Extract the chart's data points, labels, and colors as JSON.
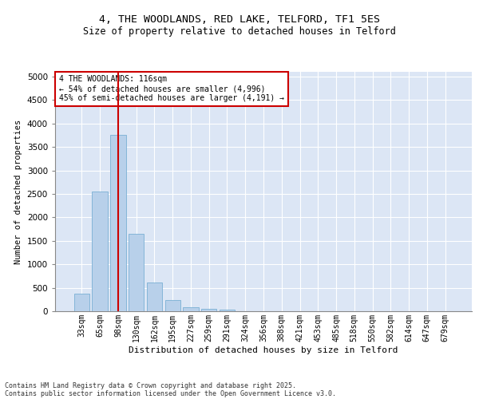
{
  "title_line1": "4, THE WOODLANDS, RED LAKE, TELFORD, TF1 5ES",
  "title_line2": "Size of property relative to detached houses in Telford",
  "xlabel": "Distribution of detached houses by size in Telford",
  "ylabel": "Number of detached properties",
  "categories": [
    "33sqm",
    "65sqm",
    "98sqm",
    "130sqm",
    "162sqm",
    "195sqm",
    "227sqm",
    "259sqm",
    "291sqm",
    "324sqm",
    "356sqm",
    "388sqm",
    "421sqm",
    "453sqm",
    "485sqm",
    "518sqm",
    "550sqm",
    "582sqm",
    "614sqm",
    "647sqm",
    "679sqm"
  ],
  "values": [
    380,
    2550,
    3750,
    1650,
    620,
    230,
    90,
    45,
    35,
    0,
    0,
    0,
    0,
    0,
    0,
    0,
    0,
    0,
    0,
    0,
    0
  ],
  "bar_color": "#b8d0ea",
  "bar_edge_color": "#7aafd4",
  "vline_x_index": 2,
  "vline_color": "#cc0000",
  "annotation_text": "4 THE WOODLANDS: 116sqm\n← 54% of detached houses are smaller (4,996)\n45% of semi-detached houses are larger (4,191) →",
  "annotation_box_color": "#cc0000",
  "ylim": [
    0,
    5100
  ],
  "yticks": [
    0,
    500,
    1000,
    1500,
    2000,
    2500,
    3000,
    3500,
    4000,
    4500,
    5000
  ],
  "background_color": "#dce6f5",
  "grid_color": "#ffffff",
  "fig_background": "#ffffff",
  "footer_line1": "Contains HM Land Registry data © Crown copyright and database right 2025.",
  "footer_line2": "Contains public sector information licensed under the Open Government Licence v3.0."
}
